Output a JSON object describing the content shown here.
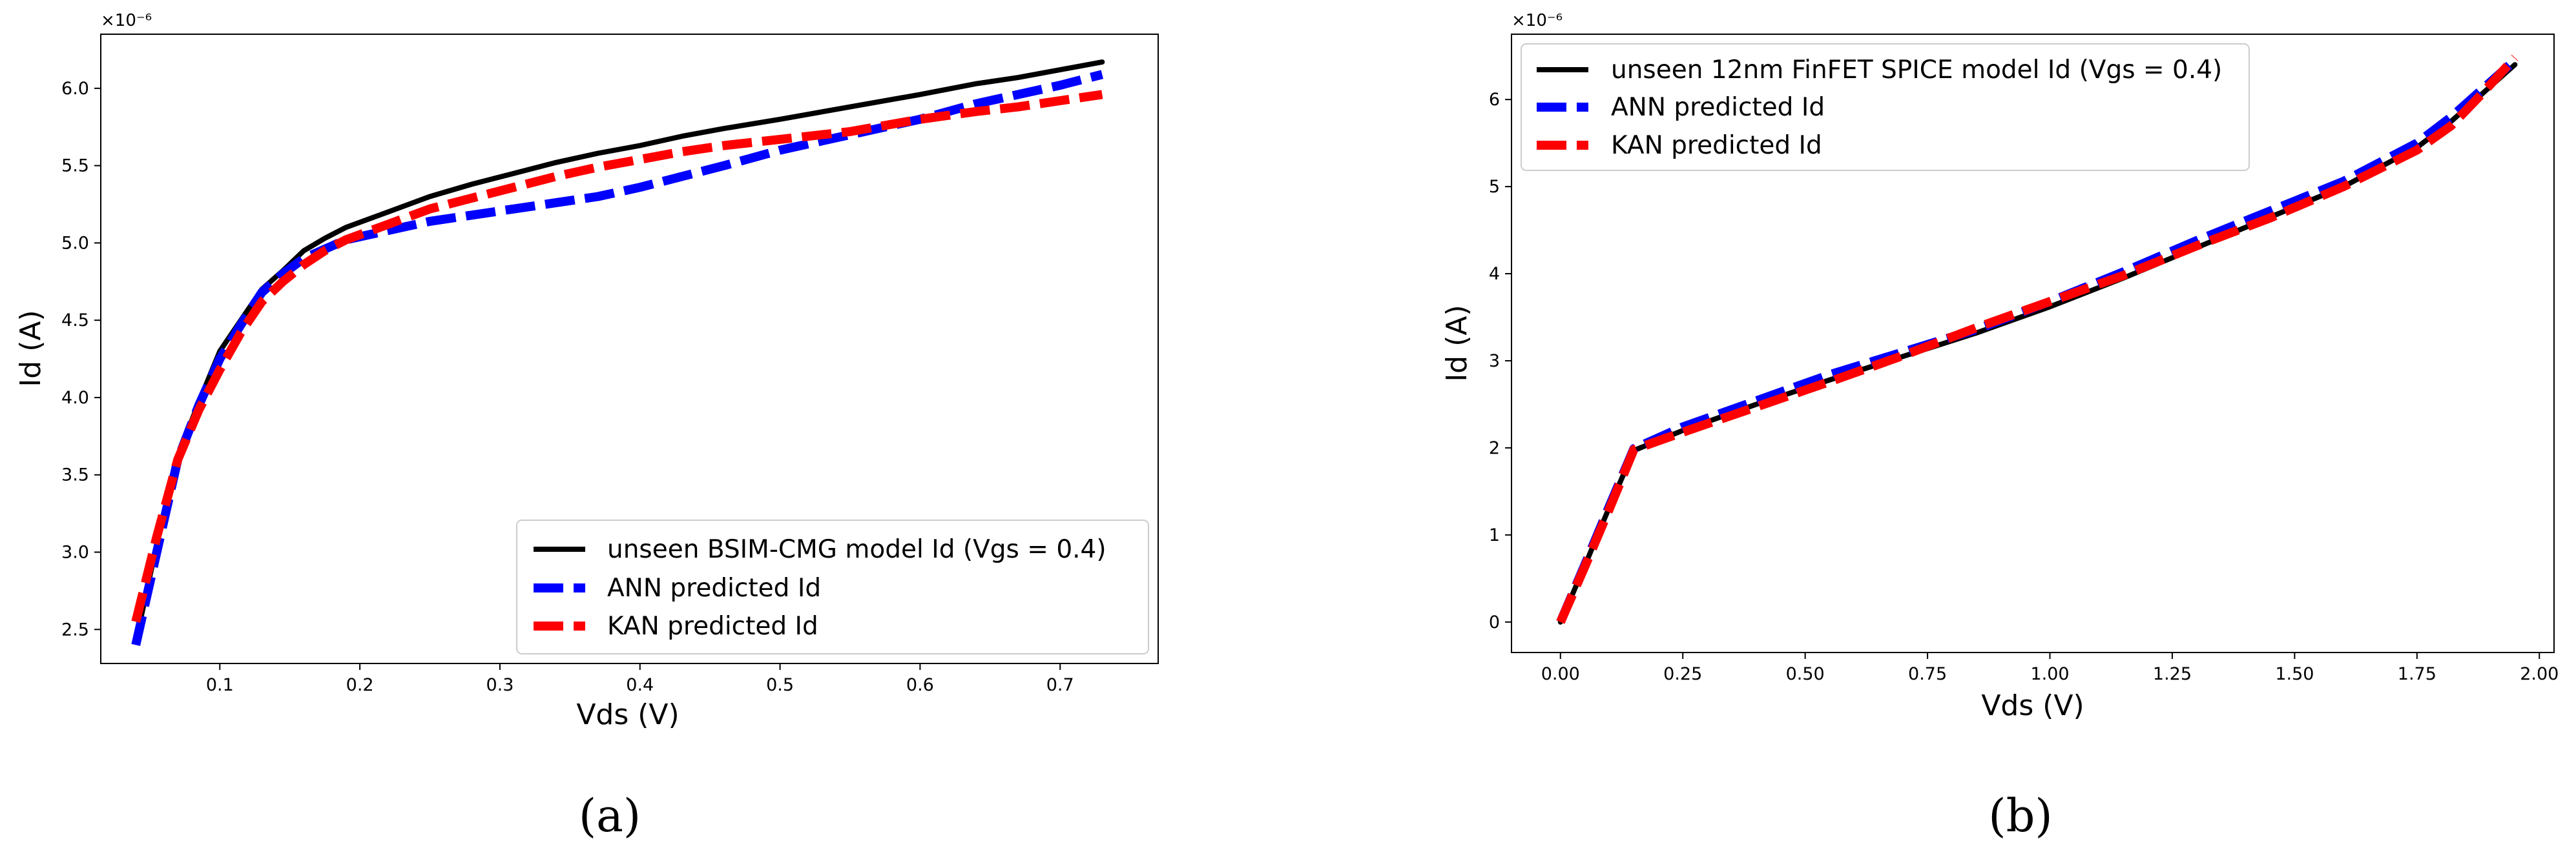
{
  "chart_data": [
    {
      "type": "line",
      "panel_label": "(a)",
      "xlabel": "Vds (V)",
      "ylabel": "Id (A)",
      "y_multiplier_label": "×10⁻⁶",
      "xlim": [
        0.015,
        0.77
      ],
      "ylim": [
        2.28,
        6.35
      ],
      "xticks": [
        0.1,
        0.2,
        0.3,
        0.4,
        0.5,
        0.6,
        0.7
      ],
      "xtick_labels": [
        "0.1",
        "0.2",
        "0.3",
        "0.4",
        "0.5",
        "0.6",
        "0.7"
      ],
      "yticks": [
        2.5,
        3.0,
        3.5,
        4.0,
        4.5,
        5.0,
        5.5,
        6.0
      ],
      "ytick_labels": [
        "2.5",
        "3.0",
        "3.5",
        "4.0",
        "4.5",
        "5.0",
        "5.5",
        "6.0"
      ],
      "legend_position": "bottom-right",
      "series": [
        {
          "name": "unseen BSIM-CMG model Id (Vgs = 0.4)",
          "color": "#000000",
          "style": "solid",
          "x": [
            0.04,
            0.055,
            0.07,
            0.085,
            0.1,
            0.115,
            0.13,
            0.145,
            0.16,
            0.175,
            0.19,
            0.22,
            0.25,
            0.28,
            0.31,
            0.34,
            0.37,
            0.4,
            0.43,
            0.46,
            0.5,
            0.55,
            0.6,
            0.64,
            0.67,
            0.7,
            0.73
          ],
          "y": [
            2.42,
            3.05,
            3.62,
            3.97,
            4.3,
            4.5,
            4.7,
            4.82,
            4.95,
            5.03,
            5.1,
            5.2,
            5.3,
            5.38,
            5.45,
            5.52,
            5.58,
            5.63,
            5.69,
            5.74,
            5.8,
            5.88,
            5.96,
            6.03,
            6.07,
            6.12,
            6.17
          ]
        },
        {
          "name": "ANN predicted Id",
          "color": "#0000ff",
          "style": "dashed",
          "x": [
            0.04,
            0.055,
            0.07,
            0.085,
            0.1,
            0.115,
            0.13,
            0.145,
            0.16,
            0.175,
            0.19,
            0.22,
            0.25,
            0.28,
            0.31,
            0.34,
            0.37,
            0.4,
            0.43,
            0.46,
            0.5,
            0.55,
            0.6,
            0.64,
            0.67,
            0.7,
            0.73
          ],
          "y": [
            2.4,
            3.0,
            3.6,
            3.95,
            4.25,
            4.47,
            4.68,
            4.8,
            4.9,
            4.96,
            5.02,
            5.08,
            5.14,
            5.18,
            5.22,
            5.26,
            5.3,
            5.36,
            5.43,
            5.5,
            5.6,
            5.7,
            5.8,
            5.9,
            5.96,
            6.02,
            6.09
          ]
        },
        {
          "name": "KAN predicted Id",
          "color": "#ff0000",
          "style": "dashed",
          "x": [
            0.04,
            0.055,
            0.07,
            0.085,
            0.1,
            0.115,
            0.13,
            0.145,
            0.16,
            0.175,
            0.19,
            0.22,
            0.25,
            0.28,
            0.31,
            0.34,
            0.37,
            0.4,
            0.43,
            0.46,
            0.5,
            0.55,
            0.6,
            0.64,
            0.67,
            0.7,
            0.73
          ],
          "y": [
            2.55,
            3.1,
            3.6,
            3.92,
            4.18,
            4.42,
            4.62,
            4.75,
            4.86,
            4.95,
            5.02,
            5.12,
            5.22,
            5.29,
            5.36,
            5.43,
            5.49,
            5.54,
            5.59,
            5.63,
            5.67,
            5.72,
            5.8,
            5.85,
            5.88,
            5.92,
            5.96
          ]
        }
      ]
    },
    {
      "type": "line",
      "panel_label": "(b)",
      "xlabel": "Vds (V)",
      "ylabel": "Id (A)",
      "y_multiplier_label": "×10⁻⁶",
      "xlim": [
        -0.1,
        2.03
      ],
      "ylim": [
        -0.35,
        6.75
      ],
      "xticks": [
        0.0,
        0.25,
        0.5,
        0.75,
        1.0,
        1.25,
        1.5,
        1.75,
        2.0
      ],
      "xtick_labels": [
        "0.00",
        "0.25",
        "0.50",
        "0.75",
        "1.00",
        "1.25",
        "1.50",
        "1.75",
        "2.00"
      ],
      "yticks": [
        0,
        1,
        2,
        3,
        4,
        5,
        6
      ],
      "ytick_labels": [
        "0",
        "1",
        "2",
        "3",
        "4",
        "5",
        "6"
      ],
      "legend_position": "top-left",
      "series": [
        {
          "name": "unseen 12nm FinFET SPICE model Id (Vgs = 0.4)",
          "color": "#000000",
          "style": "solid",
          "x": [
            0.0,
            0.05,
            0.1,
            0.15,
            0.25,
            0.4,
            0.55,
            0.7,
            0.85,
            1.0,
            1.15,
            1.3,
            1.45,
            1.6,
            1.75,
            1.82,
            1.88,
            1.95
          ],
          "y": [
            0.0,
            0.65,
            1.32,
            1.97,
            2.2,
            2.5,
            2.78,
            3.05,
            3.32,
            3.62,
            3.95,
            4.3,
            4.65,
            5.0,
            5.45,
            5.75,
            6.05,
            6.4
          ]
        },
        {
          "name": "ANN predicted Id",
          "color": "#0000ff",
          "style": "dashed",
          "x": [
            0.0,
            0.05,
            0.1,
            0.15,
            0.25,
            0.4,
            0.55,
            0.7,
            0.85,
            1.0,
            1.15,
            1.3,
            1.45,
            1.6,
            1.75,
            1.82,
            1.88,
            1.95
          ],
          "y": [
            0.0,
            0.66,
            1.33,
            1.99,
            2.24,
            2.54,
            2.84,
            3.1,
            3.36,
            3.68,
            4.02,
            4.38,
            4.72,
            5.06,
            5.5,
            5.8,
            6.1,
            6.45
          ]
        },
        {
          "name": "KAN predicted Id",
          "color": "#ff0000",
          "style": "dashed",
          "x": [
            0.0,
            0.05,
            0.1,
            0.15,
            0.25,
            0.4,
            0.55,
            0.7,
            0.85,
            1.0,
            1.15,
            1.3,
            1.45,
            1.6,
            1.75,
            1.82,
            1.88,
            1.95
          ],
          "y": [
            0.0,
            0.64,
            1.3,
            1.98,
            2.18,
            2.47,
            2.76,
            3.06,
            3.38,
            3.68,
            3.98,
            4.32,
            4.64,
            5.0,
            5.42,
            5.7,
            6.05,
            6.48
          ]
        }
      ]
    }
  ]
}
